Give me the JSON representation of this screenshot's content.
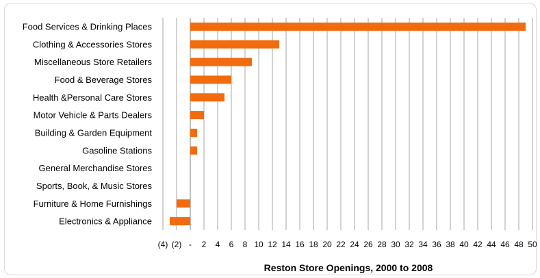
{
  "chart_data": {
    "type": "bar",
    "orientation": "horizontal",
    "categories": [
      "Food Services & Drinking Places",
      "Clothing & Accessories Stores",
      "Miscellaneous Store Retailers",
      "Food & Beverage Stores",
      "Health &Personal Care Stores",
      "Motor Vehicle & Parts Dealers",
      "Building & Garden Equipment",
      "Gasoline Stations",
      "General Merchandise Stores",
      "Sports, Book, & Music Stores",
      "Furniture & Home Furnishings",
      "Electronics & Appliance"
    ],
    "values": [
      49,
      13,
      9,
      6,
      5,
      2,
      1,
      1,
      0,
      0,
      -2,
      -3
    ],
    "xlim": [
      -4,
      50
    ],
    "tick_values": [
      -4,
      -2,
      0,
      2,
      4,
      6,
      8,
      10,
      12,
      14,
      16,
      18,
      20,
      22,
      24,
      26,
      28,
      30,
      32,
      34,
      36,
      38,
      40,
      42,
      44,
      46,
      48,
      50
    ],
    "tick_labels": [
      "(4)",
      "(2)",
      "-",
      "2",
      "4",
      "6",
      "8",
      "10",
      "12",
      "14",
      "16",
      "18",
      "20",
      "22",
      "24",
      "26",
      "28",
      "30",
      "32",
      "34",
      "36",
      "38",
      "40",
      "42",
      "44",
      "46",
      "48",
      "50"
    ],
    "xlabel": "Reston Store Openings, 2000 to 2008",
    "grid": "vertical",
    "legend": "none",
    "bar_color": "#f26b0f",
    "grid_color": "#a6a6a6"
  }
}
